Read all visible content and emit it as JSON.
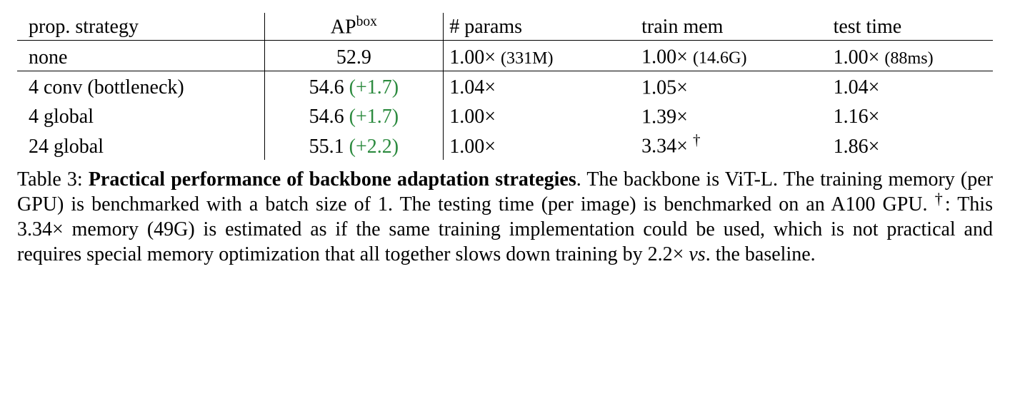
{
  "table": {
    "headers": {
      "strategy": "prop. strategy",
      "ap": "AP",
      "ap_sup": "box",
      "params": "# params",
      "train_mem": "train mem",
      "test_time": "test time"
    },
    "rows": [
      {
        "strategy": "none",
        "ap": "52.9",
        "delta": "",
        "params": "1.00×",
        "params_paren": "(331M)",
        "train_mem": "1.00×",
        "train_mem_paren": "(14.6G)",
        "train_mem_dagger": "",
        "test_time": "1.00×",
        "test_time_paren": "(88ms)"
      },
      {
        "strategy": "4 conv (bottleneck)",
        "ap": "54.6",
        "delta": "(+1.7)",
        "params": "1.04×",
        "params_paren": "",
        "train_mem": "1.05×",
        "train_mem_paren": "",
        "train_mem_dagger": "",
        "test_time": "1.04×",
        "test_time_paren": ""
      },
      {
        "strategy": "4 global",
        "ap": "54.6",
        "delta": "(+1.7)",
        "params": "1.00×",
        "params_paren": "",
        "train_mem": "1.39×",
        "train_mem_paren": "",
        "train_mem_dagger": "",
        "test_time": "1.16×",
        "test_time_paren": ""
      },
      {
        "strategy": "24 global",
        "ap": "55.1",
        "delta": "(+2.2)",
        "params": "1.00×",
        "params_paren": "",
        "train_mem": "3.34×",
        "train_mem_paren": "",
        "train_mem_dagger": "†",
        "test_time": "1.86×",
        "test_time_paren": ""
      }
    ]
  },
  "caption": {
    "label": "Table 3:",
    "title": "Practical performance of backbone adaptation strategies",
    "body1": ". The backbone is ViT-L. The training memory (per GPU) is benchmarked with a batch size of 1. The testing time (per image) is benchmarked on an A100 GPU. ",
    "dagger": "†",
    "body2": ": This 3.34× memory (49G) is estimated as if the same training implementation could be used, which is not practical and requires special memory optimization that all together slows down training by 2.2× ",
    "vs": "vs",
    "body3": ". the baseline."
  },
  "styles": {
    "delta_color": "#2b8a3e",
    "background": "#ffffff",
    "text_color": "#000000"
  }
}
